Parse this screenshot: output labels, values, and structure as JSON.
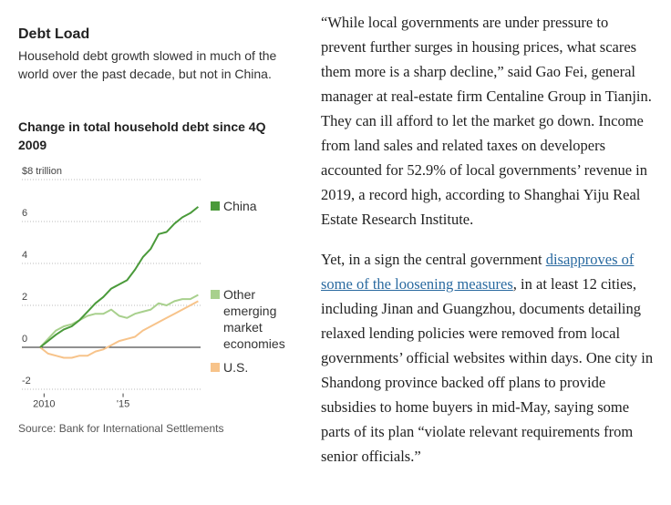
{
  "figure": {
    "title": "Debt Load",
    "subtitle": "Household debt growth slowed in much of the world over the past decade, but not in China.",
    "source": "Source: Bank for International Settlements"
  },
  "chart_data": {
    "type": "line",
    "title": "Change in total household debt since 4Q 2009",
    "x": [
      2009.75,
      2010.25,
      2010.75,
      2011.25,
      2011.75,
      2012.25,
      2012.75,
      2013.25,
      2013.75,
      2014.25,
      2014.75,
      2015.25,
      2015.75,
      2016.25,
      2016.75,
      2017.25,
      2017.75,
      2018.25,
      2018.75,
      2019.25,
      2019.75
    ],
    "series": [
      {
        "name": "China",
        "color": "#4a9a3a",
        "values": [
          0,
          0.3,
          0.6,
          0.85,
          1.0,
          1.3,
          1.7,
          2.1,
          2.4,
          2.8,
          3.0,
          3.2,
          3.7,
          4.3,
          4.7,
          5.4,
          5.5,
          5.9,
          6.2,
          6.4,
          6.7
        ]
      },
      {
        "name": "Other emerging market economies",
        "color": "#a8d08d",
        "values": [
          0,
          0.4,
          0.8,
          1.0,
          1.1,
          1.3,
          1.5,
          1.6,
          1.6,
          1.8,
          1.5,
          1.4,
          1.6,
          1.7,
          1.8,
          2.1,
          2.0,
          2.2,
          2.3,
          2.3,
          2.5
        ]
      },
      {
        "name": "U.S.",
        "color": "#f7c38a",
        "values": [
          0,
          -0.3,
          -0.4,
          -0.5,
          -0.5,
          -0.4,
          -0.4,
          -0.2,
          -0.1,
          0.1,
          0.3,
          0.4,
          0.5,
          0.8,
          1.0,
          1.2,
          1.4,
          1.6,
          1.8,
          2.0,
          2.2
        ]
      }
    ],
    "xlim": [
      2009.75,
      2019.9
    ],
    "xticks": [
      2010,
      {
        "value": 2015,
        "label": "'15"
      }
    ],
    "ylim": [
      -2.2,
      8
    ],
    "yticks": [
      {
        "value": 8,
        "label": "$8 trillion"
      },
      6,
      4,
      2,
      0,
      -2
    ],
    "grid": true
  },
  "article": {
    "paragraphs": [
      [
        "“While local governments are under pressure to prevent further surges in housing prices, what scares them more is a sharp decline,” said Gao Fei, general manager at real-estate firm Centaline Group in Tianjin. They can ill afford to let the market go down. Income from land sales and related taxes on developers accounted for 52.9% of local governments’ revenue in 2019, a record high, according to Shanghai Yiju Real Estate Research Institute."
      ],
      [
        "Yet, in a sign the central government ",
        "disapproves of some of the loosening measures",
        ", in at least 12 cities, including Jinan and Guangzhou, documents detailing relaxed lending policies were removed from local governments’ official websites within days. One city in Shandong province backed off plans to provide subsidies to home buyers in mid-May, saying some parts of its plan “violate relevant requirements from senior officials.”"
      ]
    ]
  }
}
